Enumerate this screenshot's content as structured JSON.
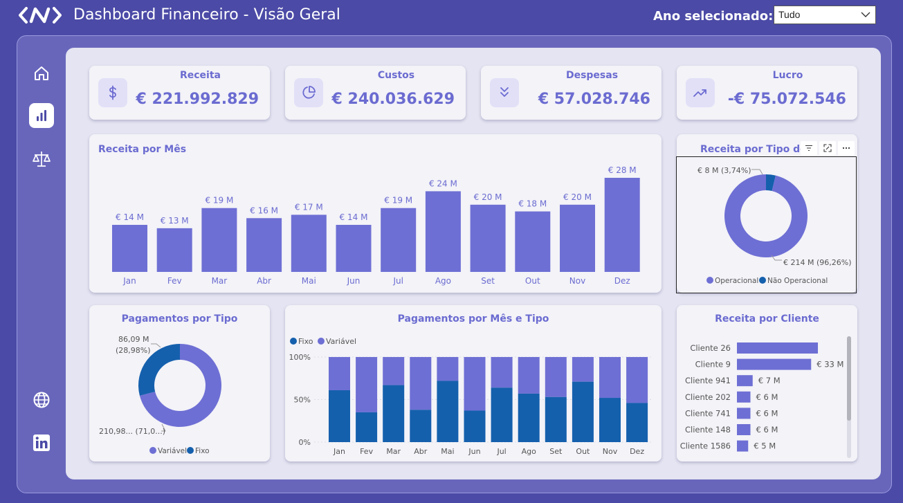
{
  "header": {
    "title": "Dashboard Financeiro - Visão Geral",
    "year_label": "Ano selecionado:",
    "year_value": "Tudo"
  },
  "sidebar": {
    "items": [
      "home-icon",
      "bar-chart-icon",
      "balance-scale-icon",
      "globe-icon",
      "linkedin-icon"
    ],
    "active": "bar-chart-icon"
  },
  "kpis": [
    {
      "label": "Receita",
      "value": "€ 221.992.829",
      "icon": "dollar-icon"
    },
    {
      "label": "Custos",
      "value": "€ 240.036.629",
      "icon": "pie-icon"
    },
    {
      "label": "Despesas",
      "value": "€ 57.028.746",
      "icon": "double-chevron-down-icon"
    },
    {
      "label": "Lucro",
      "value": "-€ 75.072.546",
      "icon": "trending-up-icon"
    }
  ],
  "colors": {
    "primary": "#6e6fd4",
    "secondary": "#1560ad",
    "header_bg": "#4b4aa6",
    "panel_bg": "#e4e4f2",
    "card_bg": "#f3f3f8"
  },
  "chart_data": [
    {
      "id": "receita_mes",
      "type": "bar",
      "title": "Receita por Mês",
      "categories": [
        "Jan",
        "Fev",
        "Mar",
        "Abr",
        "Mai",
        "Jun",
        "Jul",
        "Ago",
        "Set",
        "Out",
        "Nov",
        "Dez"
      ],
      "values": [
        14,
        13,
        19,
        16,
        17,
        14,
        19,
        24,
        20,
        18,
        20,
        28
      ],
      "data_labels": [
        "€ 14 M",
        "€ 13 M",
        "€ 19 M",
        "€ 16 M",
        "€ 17 M",
        "€ 14 M",
        "€ 19 M",
        "€ 24 M",
        "€ 20 M",
        "€ 18 M",
        "€ 20 M",
        "€ 28 M"
      ],
      "ylim": [
        0,
        28
      ]
    },
    {
      "id": "receita_tipo",
      "type": "pie",
      "title": "Receita por Tipo de",
      "slices": [
        {
          "name": "Operacional",
          "value": 96.26,
          "label": "€ 214 M (96,26%)",
          "color": "#6e6fd4"
        },
        {
          "name": "Não Operacional",
          "value": 3.74,
          "label": "€ 8 M (3,74%)",
          "color": "#1560ad"
        }
      ],
      "legend": "bottom"
    },
    {
      "id": "pagamentos_tipo",
      "type": "pie",
      "title": "Pagamentos por Tipo",
      "slices": [
        {
          "name": "Variável",
          "value": 71.02,
          "label": "210,98... (71,0...)",
          "color": "#6e6fd4"
        },
        {
          "name": "Fixo",
          "value": 28.98,
          "label_line1": "86,09 M",
          "label_line2": "(28,98%)",
          "color": "#1560ad"
        }
      ],
      "legend": "bottom"
    },
    {
      "id": "pagamentos_mes_tipo",
      "type": "bar",
      "title": "Pagamentos por Mês e Tipo",
      "stacked_percent": true,
      "categories": [
        "Jan",
        "Fev",
        "Mar",
        "Abr",
        "Mai",
        "Jun",
        "Jul",
        "Ago",
        "Set",
        "Out",
        "Nov",
        "Dez"
      ],
      "series": [
        {
          "name": "Fixo",
          "values": [
            61,
            35,
            67,
            38,
            72,
            37,
            64,
            57,
            53,
            71,
            52,
            46
          ],
          "color": "#1560ad"
        },
        {
          "name": "Variável",
          "values": [
            39,
            65,
            33,
            62,
            28,
            63,
            36,
            43,
            47,
            29,
            48,
            54
          ],
          "color": "#6e6fd4"
        }
      ],
      "yticks": [
        "0%",
        "50%",
        "100%"
      ],
      "legend": "top-left"
    },
    {
      "id": "receita_cliente",
      "type": "bar",
      "orientation": "horizontal",
      "title": "Receita por Cliente",
      "categories": [
        "Cliente 26",
        "Cliente 9",
        "Cliente 941",
        "Cliente 202",
        "Cliente 741",
        "Cliente 148",
        "Cliente 1586"
      ],
      "values": [
        36,
        33,
        7,
        6,
        6,
        6,
        5
      ],
      "data_labels": [
        "",
        "€ 33 M",
        "€ 7 M",
        "€ 6 M",
        "€ 6 M",
        "€ 6 M",
        "€ 5 M"
      ]
    }
  ]
}
